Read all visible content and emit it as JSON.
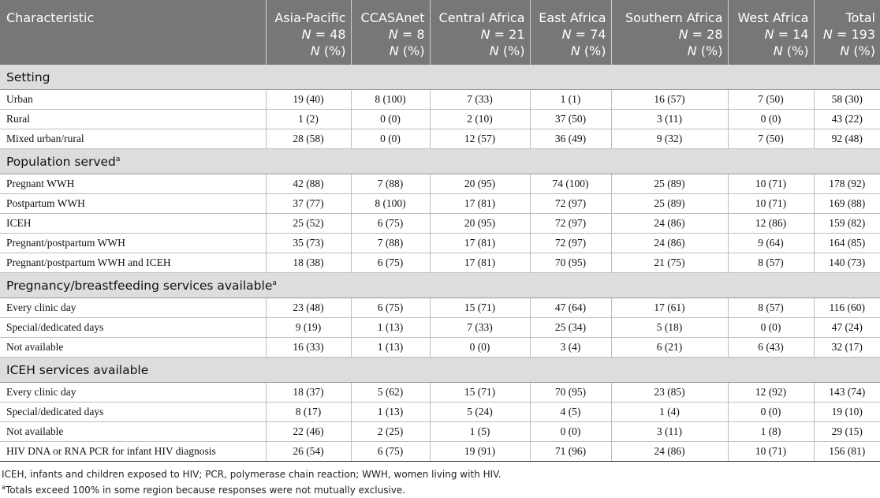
{
  "headers": [
    {
      "name": "Characteristic",
      "n": "",
      "unit": ""
    },
    {
      "name": "Asia-Pacific",
      "n": "= 48",
      "unit": "(%)"
    },
    {
      "name": "CCASAnet",
      "n": "= 8",
      "unit": "(%)"
    },
    {
      "name": "Central Africa",
      "n": "= 21",
      "unit": "(%)"
    },
    {
      "name": "East Africa",
      "n": "= 74",
      "unit": "(%)"
    },
    {
      "name": "Southern Africa",
      "n": "= 28",
      "unit": "(%)"
    },
    {
      "name": "West Africa",
      "n": "= 14",
      "unit": "(%)"
    },
    {
      "name": "Total",
      "n": "= 193",
      "unit": "(%)"
    }
  ],
  "n_symbol": "N",
  "sections": [
    {
      "title": "Setting",
      "sup": "",
      "rows": [
        {
          "label": "Urban",
          "values": [
            "19 (40)",
            "8 (100)",
            "7 (33)",
            "1 (1)",
            "16 (57)",
            "7 (50)",
            "58 (30)"
          ]
        },
        {
          "label": "Rural",
          "values": [
            "1 (2)",
            "0 (0)",
            "2 (10)",
            "37 (50)",
            "3 (11)",
            "0 (0)",
            "43 (22)"
          ]
        },
        {
          "label": "Mixed urban/rural",
          "values": [
            "28 (58)",
            "0 (0)",
            "12 (57)",
            "36 (49)",
            "9 (32)",
            "7 (50)",
            "92 (48)"
          ]
        }
      ]
    },
    {
      "title": "Population served",
      "sup": "a",
      "rows": [
        {
          "label": "Pregnant WWH",
          "values": [
            "42 (88)",
            "7 (88)",
            "20 (95)",
            "74 (100)",
            "25 (89)",
            "10 (71)",
            "178 (92)"
          ]
        },
        {
          "label": "Postpartum WWH",
          "values": [
            "37 (77)",
            "8 (100)",
            "17 (81)",
            "72 (97)",
            "25 (89)",
            "10 (71)",
            "169 (88)"
          ]
        },
        {
          "label": "ICEH",
          "values": [
            "25 (52)",
            "6 (75)",
            "20 (95)",
            "72 (97)",
            "24 (86)",
            "12 (86)",
            "159 (82)"
          ]
        },
        {
          "label": "Pregnant/postpartum WWH",
          "values": [
            "35 (73)",
            "7 (88)",
            "17 (81)",
            "72 (97)",
            "24 (86)",
            "9 (64)",
            "164 (85)"
          ]
        },
        {
          "label": "Pregnant/postpartum WWH and ICEH",
          "values": [
            "18 (38)",
            "6 (75)",
            "17 (81)",
            "70 (95)",
            "21 (75)",
            "8 (57)",
            "140 (73)"
          ]
        }
      ]
    },
    {
      "title": "Pregnancy/breastfeeding services available",
      "sup": "a",
      "rows": [
        {
          "label": "Every clinic day",
          "values": [
            "23 (48)",
            "6 (75)",
            "15 (71)",
            "47 (64)",
            "17 (61)",
            "8 (57)",
            "116 (60)"
          ]
        },
        {
          "label": "Special/dedicated days",
          "values": [
            "9 (19)",
            "1 (13)",
            "7 (33)",
            "25 (34)",
            "5 (18)",
            "0 (0)",
            "47 (24)"
          ]
        },
        {
          "label": "Not available",
          "values": [
            "16 (33)",
            "1 (13)",
            "0 (0)",
            "3 (4)",
            "6 (21)",
            "6 (43)",
            "32 (17)"
          ]
        }
      ]
    },
    {
      "title": "ICEH services available",
      "sup": "",
      "rows": [
        {
          "label": "Every clinic day",
          "values": [
            "18 (37)",
            "5 (62)",
            "15 (71)",
            "70 (95)",
            "23 (85)",
            "12 (92)",
            "143 (74)"
          ]
        },
        {
          "label": "Special/dedicated days",
          "values": [
            "8 (17)",
            "1 (13)",
            "5 (24)",
            "4 (5)",
            "1 (4)",
            "0 (0)",
            "19 (10)"
          ]
        },
        {
          "label": "Not available",
          "values": [
            "22 (46)",
            "2 (25)",
            "1 (5)",
            "0 (0)",
            "3 (11)",
            "1 (8)",
            "29 (15)"
          ]
        },
        {
          "label": "HIV DNA or RNA PCR for infant HIV diagnosis",
          "values": [
            "26 (54)",
            "6 (75)",
            "19 (91)",
            "71 (96)",
            "24 (86)",
            "10 (71)",
            "156 (81)"
          ]
        }
      ]
    }
  ],
  "footnotes": {
    "abbrev": "ICEH, infants and children exposed to HIV; PCR, polymerase chain reaction; WWH, women living with HIV.",
    "a_marker": "a",
    "a_text": "Totals exceed 100% in some region because responses were not mutually exclusive."
  }
}
